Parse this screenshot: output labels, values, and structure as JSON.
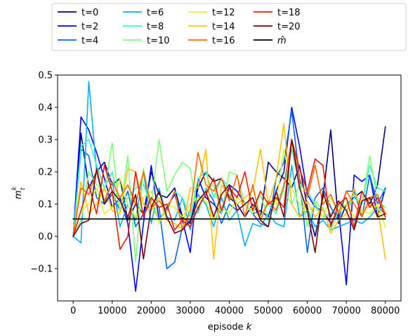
{
  "chart_data": {
    "type": "line",
    "title": "",
    "xlabel": "episode",
    "xlabel_var": "k",
    "ylabel_main": "m",
    "ylabel_sup": "k",
    "ylabel_sub": "t",
    "xlim": [
      -4000,
      84000
    ],
    "ylim": [
      -0.2,
      0.5
    ],
    "xticks": [
      0,
      10000,
      20000,
      30000,
      40000,
      50000,
      60000,
      70000,
      80000
    ],
    "yticks": [
      -0.1,
      0.0,
      0.1,
      0.2,
      0.3,
      0.4,
      0.5
    ],
    "ytick_labels": [
      "−0.1",
      "0.0",
      "0.1",
      "0.2",
      "0.3",
      "0.4",
      "0.5"
    ],
    "grid": false,
    "legend_position": "above plot, 5 columns",
    "x": [
      0,
      2000,
      4000,
      6000,
      8000,
      10000,
      12000,
      14000,
      16000,
      18000,
      20000,
      22000,
      24000,
      26000,
      28000,
      30000,
      32000,
      34000,
      36000,
      38000,
      40000,
      42000,
      44000,
      46000,
      48000,
      50000,
      52000,
      54000,
      56000,
      58000,
      60000,
      62000,
      64000,
      66000,
      68000,
      70000,
      72000,
      74000,
      76000,
      78000,
      80000
    ],
    "series": [
      {
        "name": "t=0",
        "color": "#00007f",
        "values": [
          0.0,
          0.32,
          0.15,
          0.2,
          0.23,
          0.16,
          0.18,
          0.05,
          0.1,
          0.07,
          0.2,
          0.13,
          0.12,
          0.15,
          0.06,
          0.04,
          0.15,
          0.2,
          0.17,
          0.18,
          0.12,
          0.1,
          0.06,
          0.1,
          0.06,
          0.23,
          0.2,
          0.18,
          0.15,
          0.22,
          0.09,
          0.0,
          0.12,
          0.33,
          0.04,
          0.1,
          0.12,
          0.14,
          0.1,
          0.16,
          0.34
        ]
      },
      {
        "name": "t=2",
        "color": "#0000ff",
        "values": [
          0.0,
          0.37,
          0.33,
          0.26,
          0.18,
          0.09,
          0.12,
          0.04,
          -0.17,
          0.04,
          0.22,
          0.05,
          0.09,
          0.13,
          0.05,
          -0.05,
          0.18,
          0.12,
          0.1,
          0.07,
          0.16,
          0.14,
          0.1,
          0.07,
          0.08,
          0.06,
          0.14,
          0.2,
          0.4,
          0.28,
          0.13,
          0.09,
          0.08,
          0.04,
          0.08,
          -0.15,
          0.19,
          0.17,
          0.19,
          0.06,
          0.15
        ]
      },
      {
        "name": "t=4",
        "color": "#0066ff",
        "values": [
          0.0,
          0.27,
          0.25,
          0.12,
          0.1,
          0.13,
          0.08,
          0.14,
          0.03,
          0.07,
          0.12,
          0.09,
          -0.1,
          -0.08,
          0.03,
          0.05,
          0.08,
          0.15,
          0.11,
          0.04,
          0.1,
          0.08,
          0.1,
          0.07,
          0.04,
          0.03,
          0.18,
          0.23,
          0.39,
          0.18,
          -0.05,
          0.12,
          0.15,
          0.09,
          0.05,
          0.14,
          0.14,
          0.06,
          0.19,
          0.1,
          0.15
        ]
      },
      {
        "name": "t=6",
        "color": "#00b0ff",
        "values": [
          0.0,
          -0.02,
          0.48,
          0.2,
          0.1,
          0.17,
          0.03,
          0.1,
          0.05,
          0.2,
          0.04,
          0.15,
          0.06,
          0.05,
          0.12,
          0.02,
          0.13,
          0.1,
          0.03,
          0.12,
          0.05,
          0.08,
          -0.03,
          0.04,
          0.03,
          0.07,
          0.04,
          0.03,
          0.22,
          0.06,
          0.08,
          0.03,
          0.05,
          0.02,
          0.03,
          0.04,
          0.05,
          0.04,
          0.06,
          0.09,
          0.07
        ]
      },
      {
        "name": "t=8",
        "color": "#29ffce",
        "values": [
          0.0,
          0.28,
          0.3,
          0.22,
          0.15,
          0.2,
          0.08,
          0.12,
          0.15,
          0.16,
          0.1,
          0.05,
          0.08,
          0.14,
          0.12,
          0.06,
          0.18,
          0.2,
          0.12,
          0.18,
          0.15,
          0.08,
          0.1,
          0.12,
          0.06,
          0.1,
          0.07,
          0.15,
          0.27,
          0.16,
          0.14,
          0.1,
          0.06,
          0.07,
          0.1,
          0.08,
          0.12,
          0.1,
          0.22,
          0.15,
          0.14
        ]
      },
      {
        "name": "t=10",
        "color": "#7dff7a",
        "values": [
          0.0,
          0.05,
          0.2,
          0.16,
          0.14,
          0.29,
          0.07,
          0.25,
          -0.08,
          0.21,
          0.1,
          0.3,
          0.14,
          0.19,
          0.23,
          0.21,
          0.07,
          0.15,
          0.16,
          0.07,
          0.2,
          0.19,
          0.1,
          0.07,
          0.13,
          0.05,
          0.12,
          0.14,
          0.1,
          0.16,
          0.03,
          0.11,
          0.08,
          0.02,
          0.08,
          0.1,
          0.13,
          0.1,
          0.25,
          0.11,
          0.09
        ]
      },
      {
        "name": "t=12",
        "color": "#ceff29",
        "values": [
          0.0,
          0.08,
          0.1,
          0.15,
          0.07,
          0.09,
          0.18,
          0.1,
          0.06,
          0.12,
          0.14,
          0.04,
          0.1,
          0.09,
          0.06,
          0.1,
          0.12,
          0.11,
          0.05,
          0.09,
          0.07,
          0.12,
          0.1,
          0.08,
          0.06,
          0.11,
          0.1,
          0.27,
          0.15,
          0.1,
          0.08,
          0.09,
          0.06,
          0.12,
          0.07,
          0.1,
          0.06,
          0.08,
          0.07,
          0.1,
          0.03
        ]
      },
      {
        "name": "t=14",
        "color": "#ffc400",
        "values": [
          0.0,
          0.17,
          0.07,
          0.1,
          0.15,
          0.08,
          0.07,
          0.21,
          0.2,
          0.1,
          0.08,
          0.12,
          0.05,
          0.04,
          0.02,
          0.15,
          0.15,
          0.27,
          -0.07,
          0.16,
          0.13,
          0.1,
          0.12,
          0.14,
          0.27,
          0.1,
          0.18,
          0.35,
          0.1,
          0.06,
          0.11,
          0.06,
          0.09,
          0.01,
          0.05,
          0.07,
          0.15,
          0.07,
          0.1,
          0.09,
          -0.07
        ]
      },
      {
        "name": "t=16",
        "color": "#ff6800",
        "values": [
          0.0,
          0.15,
          0.13,
          0.2,
          0.11,
          0.17,
          0.12,
          0.16,
          0.1,
          0.2,
          0.09,
          0.11,
          0.08,
          0.14,
          0.02,
          0.08,
          0.26,
          0.16,
          0.14,
          0.18,
          0.11,
          0.19,
          0.06,
          0.16,
          0.05,
          0.11,
          0.08,
          0.16,
          0.3,
          0.18,
          0.12,
          0.22,
          0.1,
          0.13,
          0.07,
          0.14,
          0.1,
          0.06,
          0.12,
          0.13,
          0.07
        ]
      },
      {
        "name": "t=18",
        "color": "#ee1900",
        "values": [
          0.0,
          0.08,
          0.16,
          0.07,
          0.22,
          0.14,
          -0.04,
          0.0,
          0.2,
          0.06,
          0.12,
          0.09,
          0.1,
          0.02,
          0.05,
          0.03,
          0.09,
          0.13,
          0.18,
          0.08,
          0.15,
          0.12,
          0.2,
          0.08,
          0.14,
          0.1,
          0.12,
          0.09,
          0.3,
          0.21,
          0.14,
          0.24,
          0.22,
          0.03,
          0.1,
          0.12,
          0.03,
          0.14,
          0.09,
          0.12,
          0.06
        ]
      },
      {
        "name": "t=20",
        "color": "#7f0000",
        "values": [
          0.0,
          0.04,
          0.05,
          0.21,
          0.1,
          0.14,
          0.11,
          0.06,
          0.13,
          -0.07,
          0.09,
          0.14,
          0.06,
          0.01,
          0.02,
          0.05,
          0.11,
          0.14,
          0.06,
          0.13,
          0.16,
          0.08,
          0.1,
          0.12,
          0.05,
          0.03,
          0.14,
          0.06,
          0.3,
          0.15,
          0.08,
          -0.05,
          0.14,
          0.06,
          0.11,
          0.08,
          0.02,
          0.11,
          0.12,
          0.06,
          0.07
        ]
      },
      {
        "name": "m̂",
        "color": "#000000",
        "values": [
          0.054,
          0.054,
          0.054,
          0.054,
          0.054,
          0.054,
          0.054,
          0.054,
          0.054,
          0.054,
          0.054,
          0.054,
          0.054,
          0.054,
          0.054,
          0.054,
          0.054,
          0.054,
          0.054,
          0.054,
          0.054,
          0.054,
          0.054,
          0.054,
          0.054,
          0.054,
          0.054,
          0.054,
          0.054,
          0.054,
          0.054,
          0.054,
          0.054,
          0.054,
          0.054,
          0.054,
          0.054,
          0.054,
          0.054,
          0.054,
          0.054
        ]
      }
    ]
  }
}
